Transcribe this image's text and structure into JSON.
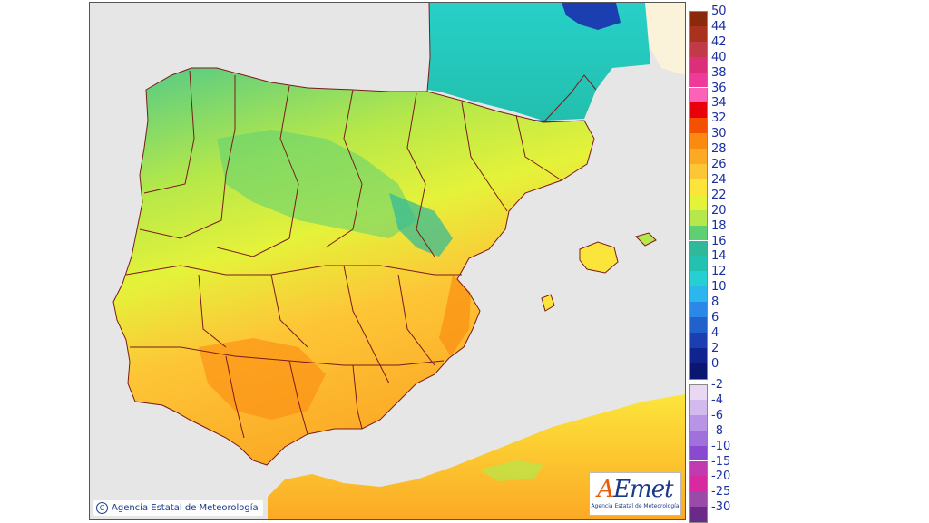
{
  "copyright": {
    "symbol": "C",
    "text": "Agencia Estatal de Meteorología"
  },
  "logo": {
    "first_letter": "A",
    "rest": "Emet",
    "subtitle": "Agencia Estatal de Meteorología"
  },
  "colors": {
    "sea": "#e6e6e6",
    "foreign_land": "#fbf3d9",
    "border_line": "#7a1a1a",
    "label_text": "#1a2fa0"
  },
  "legend": {
    "warm_scale": [
      {
        "label": "50",
        "color": "#8a2a0a"
      },
      {
        "label": "44",
        "color": "#a8321e"
      },
      {
        "label": "42",
        "color": "#c23a48"
      },
      {
        "label": "40",
        "color": "#dc2f7a"
      },
      {
        "label": "38",
        "color": "#ee3a98"
      },
      {
        "label": "36",
        "color": "#fb62b8"
      },
      {
        "label": "34",
        "color": "#e8000a"
      },
      {
        "label": "32",
        "color": "#f55000"
      },
      {
        "label": "30",
        "color": "#fb8a10"
      },
      {
        "label": "28",
        "color": "#fca926"
      },
      {
        "label": "26",
        "color": "#fdc637"
      },
      {
        "label": "24",
        "color": "#fce53a"
      },
      {
        "label": "22",
        "color": "#e5f23a"
      },
      {
        "label": "20",
        "color": "#b5e84a"
      },
      {
        "label": "18",
        "color": "#5fcf74"
      },
      {
        "label": "16",
        "color": "#2fb89a"
      },
      {
        "label": "14",
        "color": "#23c2b0"
      },
      {
        "label": "12",
        "color": "#27d0d0"
      },
      {
        "label": "10",
        "color": "#2bb6ee"
      },
      {
        "label": "8",
        "color": "#2a88e8"
      },
      {
        "label": "6",
        "color": "#2261cc"
      },
      {
        "label": "4",
        "color": "#1b3fb0"
      },
      {
        "label": "2",
        "color": "#102490"
      },
      {
        "label": "0",
        "color": "#0a1670"
      }
    ],
    "cold_scale": [
      {
        "label": "-2",
        "color": "#e8d8f4"
      },
      {
        "label": "-4",
        "color": "#d2baee"
      },
      {
        "label": "-6",
        "color": "#b894e6"
      },
      {
        "label": "-8",
        "color": "#a070dc"
      },
      {
        "label": "-10",
        "color": "#8a4ad0"
      },
      {
        "label": "-15",
        "color": "#c23ab0"
      },
      {
        "label": "-20",
        "color": "#d82aa0"
      },
      {
        "label": "-25",
        "color": "#9a4aa8"
      },
      {
        "label": "-30",
        "color": "#6a2a88"
      }
    ]
  }
}
